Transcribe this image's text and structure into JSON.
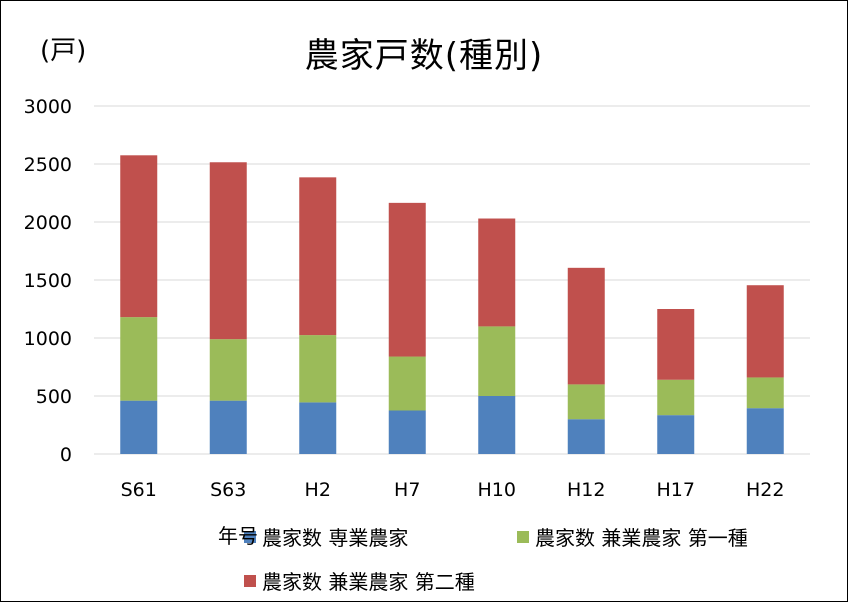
{
  "chart_data": {
    "type": "bar",
    "stacked": true,
    "title": "農家戸数(種別)",
    "ylabel": "(戸)",
    "xlabel": "年号",
    "categories": [
      "S61",
      "S63",
      "H2",
      "H7",
      "H10",
      "H12",
      "H17",
      "H22"
    ],
    "ylim": [
      0,
      3000
    ],
    "yticks": [
      0,
      500,
      1000,
      1500,
      2000,
      2500,
      3000
    ],
    "grid": true,
    "legend_position": "bottom",
    "series": [
      {
        "name": "農家数 専業農家",
        "color": "#4f81bd",
        "values": [
          460,
          460,
          445,
          375,
          500,
          300,
          335,
          395
        ]
      },
      {
        "name": "農家数 兼業農家 第一種",
        "color": "#9bbb59",
        "values": [
          720,
          530,
          580,
          465,
          600,
          300,
          305,
          265
        ]
      },
      {
        "name": "農家数 兼業農家 第二種",
        "color": "#c0504d",
        "values": [
          1395,
          1525,
          1360,
          1325,
          930,
          1005,
          610,
          795
        ]
      }
    ]
  }
}
